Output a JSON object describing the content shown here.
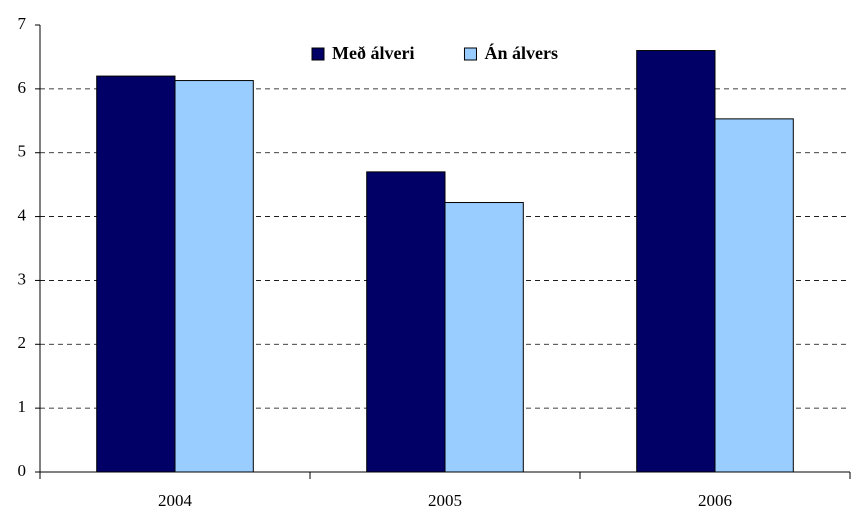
{
  "chart_data": {
    "type": "bar",
    "categories": [
      "2004",
      "2005",
      "2006"
    ],
    "series": [
      {
        "name": "Með álveri",
        "color": "#000066",
        "values": [
          6.2,
          4.7,
          6.6
        ]
      },
      {
        "name": "Án álvers",
        "color": "#99ccff",
        "values": [
          6.13,
          4.22,
          5.53
        ]
      }
    ],
    "ylim": [
      0,
      7
    ],
    "yticks": [
      0,
      1,
      2,
      3,
      4,
      5,
      6,
      7
    ],
    "grid": true,
    "legend": "top"
  }
}
